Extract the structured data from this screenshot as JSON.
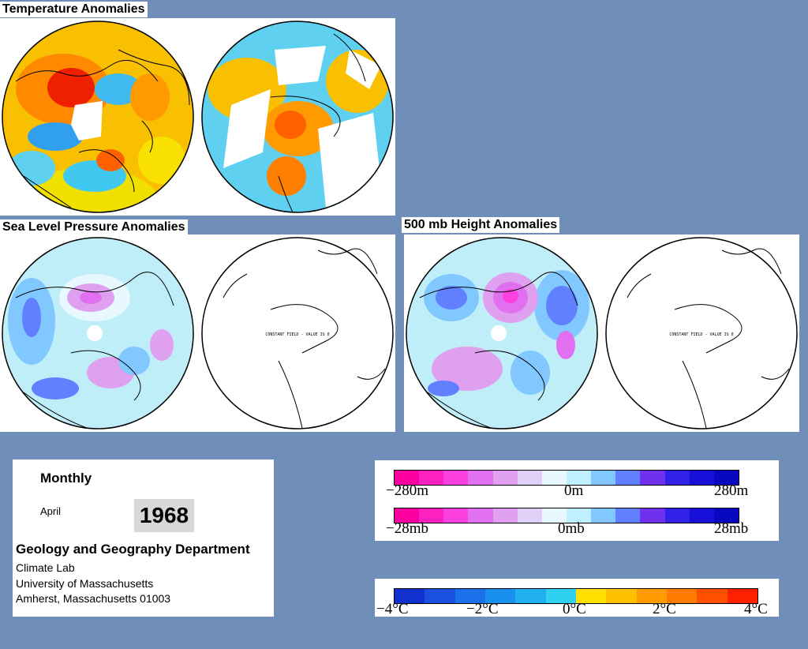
{
  "panels": {
    "temperature_title": "Temperature Anomalies",
    "slp_title": "Sea Level Pressure Anomalies",
    "height_title": "500 mb Height Anomalies",
    "constant_field_note": "CONSTANT FIELD - VALUE IS 0"
  },
  "info": {
    "period": "Monthly",
    "month": "April",
    "year": "1968",
    "department": "Geology and Geography Department",
    "lab": "Climate Lab",
    "university": "University of Massachusetts",
    "address": "Amherst, Massachusetts 01003"
  },
  "legend_height_pressure": {
    "height_labels": [
      "−280m",
      "0m",
      "280m"
    ],
    "pressure_labels": [
      "−28mb",
      "0mb",
      "28mb"
    ],
    "colors": [
      "#ff00a0",
      "#ff20c0",
      "#ff40e0",
      "#e070f0",
      "#e0a0f0",
      "#e0d0f8",
      "#e8f8ff",
      "#c0f0ff",
      "#80c8ff",
      "#6080ff",
      "#7030f0",
      "#3020e8",
      "#1810d8",
      "#0808c0"
    ]
  },
  "legend_temperature": {
    "labels": [
      "−4°C",
      "−2°C",
      "0°C",
      "2°C",
      "4°C"
    ],
    "colors": [
      "#1030d0",
      "#1a50e0",
      "#1a70e8",
      "#1a90ee",
      "#20b0f0",
      "#30d0f0",
      "#ffe000",
      "#ffc000",
      "#ff9a00",
      "#ff7a00",
      "#ff5000",
      "#ff2000"
    ]
  }
}
